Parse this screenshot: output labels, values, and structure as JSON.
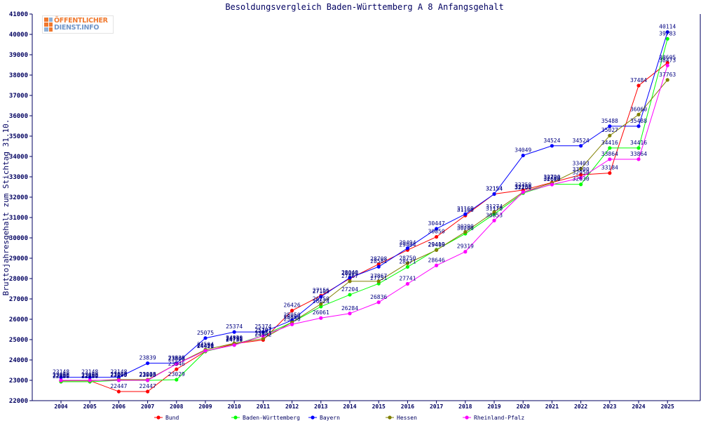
{
  "chart_data": {
    "type": "line",
    "title": "Besoldungsvergleich Baden-Württemberg A 8 Anfangsgehalt",
    "ylabel": "Bruttojahresgehalt zum Stichtag 31.10.",
    "xlabel": "",
    "categories": [
      "2004",
      "2005",
      "2006",
      "2007",
      "2008",
      "2009",
      "2010",
      "2011",
      "2012",
      "2013",
      "2014",
      "2015",
      "2016",
      "2017",
      "2018",
      "2019",
      "2020",
      "2021",
      "2022",
      "2023",
      "2024",
      "2025"
    ],
    "ylim": [
      22000,
      41000
    ],
    "yticks": [
      22000,
      23000,
      24000,
      25000,
      26000,
      27000,
      28000,
      29000,
      30000,
      31000,
      32000,
      33000,
      34000,
      35000,
      36000,
      37000,
      38000,
      39000,
      40000,
      41000
    ],
    "grid": false,
    "legend_position": "bottom",
    "series": [
      {
        "name": "Bund",
        "color": "#ff0000",
        "values": [
          22980,
          22980,
          22447,
          22447,
          23546,
          24416,
          24796,
          24982,
          26426,
          27156,
          28000,
          28708,
          29404,
          30050,
          31100,
          32154,
          32350,
          32720,
          33100,
          33184,
          37484,
          38605
        ]
      },
      {
        "name": "Baden-Württemberg",
        "color": "#00ff00",
        "values": [
          22930,
          22930,
          22995,
          22995,
          23029,
          24421,
          24751,
          25201,
          25850,
          26624,
          27204,
          27751,
          28571,
          29419,
          30206,
          31170,
          32200,
          32640,
          32630,
          34416,
          34416,
          39783
        ]
      },
      {
        "name": "Bayern",
        "color": "#0000ff",
        "values": [
          23148,
          23148,
          23148,
          23839,
          23839,
          25075,
          25374,
          25374,
          25950,
          27103,
          28040,
          28582,
          29494,
          30447,
          31169,
          32154,
          34049,
          34524,
          34524,
          35488,
          35488,
          40114
        ]
      },
      {
        "name": "Hessen",
        "color": "#808000",
        "values": [
          22980,
          22980,
          23040,
          23033,
          23800,
          24504,
          24820,
          25051,
          25850,
          26750,
          27867,
          27867,
          28750,
          29400,
          30290,
          31274,
          32250,
          32700,
          33403,
          35027,
          36060,
          37763
        ]
      },
      {
        "name": "Rheinland-Pfalz",
        "color": "#ff00ff",
        "values": [
          23000,
          23000,
          23000,
          23000,
          23800,
          24450,
          24730,
          25187,
          25750,
          26061,
          26284,
          26836,
          27741,
          28646,
          29319,
          30853,
          32250,
          32620,
          32950,
          33864,
          33864,
          38473
        ]
      }
    ]
  },
  "logo": {
    "line1": "ÖFFENTLICHER",
    "line2": "DIENST.INFO"
  }
}
